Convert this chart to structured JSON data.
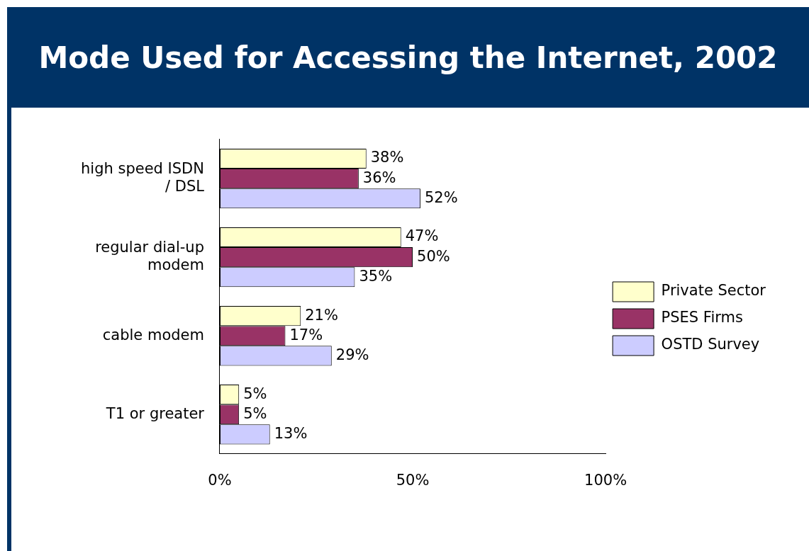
{
  "chart_data": {
    "type": "bar",
    "orientation": "horizontal",
    "title": "Mode Used for Accessing the Internet, 2002",
    "categories": [
      "high speed ISDN / DSL",
      "regular dial-up modem",
      "cable modem",
      "T1 or greater"
    ],
    "series": [
      {
        "name": "Private Sector",
        "color": "#ffffcc",
        "values": [
          38,
          47,
          21,
          5
        ],
        "value_labels": [
          "38%",
          "47%",
          "21%",
          "5%"
        ]
      },
      {
        "name": "PSES Firms",
        "color": "#993366",
        "values": [
          36,
          50,
          17,
          5
        ],
        "value_labels": [
          "36%",
          "50%",
          "17%",
          "5%"
        ]
      },
      {
        "name": "OSTD Survey",
        "color": "#ccccff",
        "values": [
          52,
          35,
          29,
          13
        ],
        "value_labels": [
          "52%",
          "35%",
          "29%",
          "13%"
        ]
      }
    ],
    "xlim": [
      0,
      100
    ],
    "xticks": [
      {
        "value": 0,
        "label": "0%"
      },
      {
        "value": 50,
        "label": "50%"
      },
      {
        "value": 100,
        "label": "100%"
      }
    ],
    "grid": false,
    "legend": "right"
  }
}
